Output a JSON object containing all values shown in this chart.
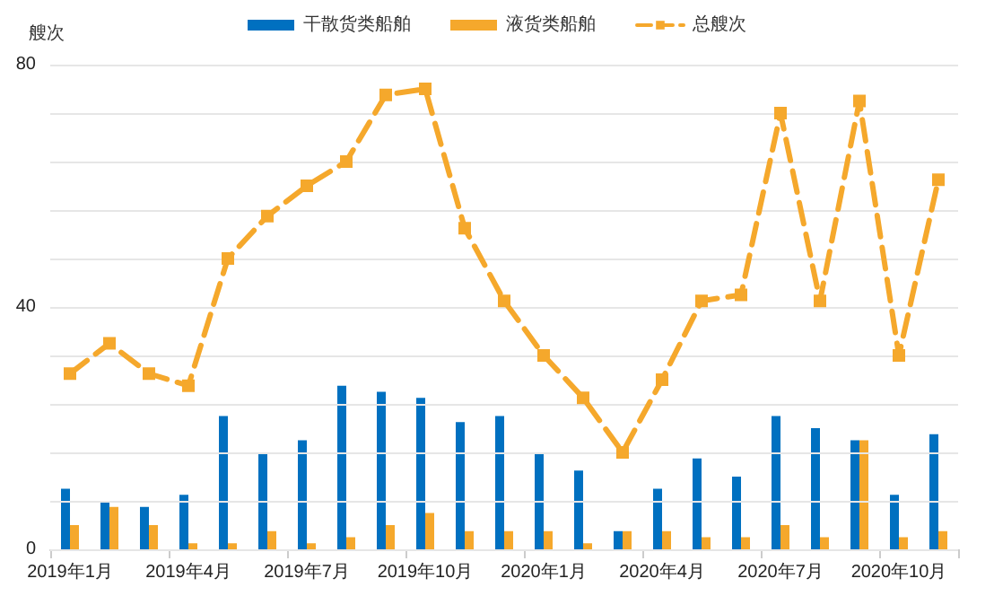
{
  "chart_data": {
    "type": "bar",
    "ylabel": "艘次",
    "categories": [
      "2019年1月",
      null,
      null,
      "2019年4月",
      null,
      null,
      "2019年7月",
      null,
      null,
      "2019年10月",
      null,
      null,
      "2020年1月",
      null,
      null,
      "2020年4月",
      null,
      null,
      "2020年7月",
      null,
      null,
      "2020年10月",
      null
    ],
    "series": [
      {
        "name": "干散货类船舶",
        "color": "#0070c0",
        "values": [
          10,
          8,
          7,
          9,
          22,
          16,
          18,
          27,
          26,
          25,
          21,
          22,
          16,
          13,
          3,
          10,
          15,
          12,
          22,
          20,
          18,
          9,
          19
        ]
      },
      {
        "name": "液货类船舶",
        "color": "#f5a82c",
        "values": [
          4,
          7,
          4,
          1,
          1,
          3,
          1,
          2,
          4,
          6,
          3,
          3,
          3,
          1,
          3,
          3,
          2,
          2,
          4,
          2,
          18,
          2,
          3
        ]
      },
      {
        "name": "总艘次",
        "type": "line",
        "color": "#f5a82c",
        "marker": "square",
        "line_style": "dashed",
        "values": [
          29,
          34,
          29,
          27,
          48,
          55,
          60,
          64,
          75,
          76,
          53,
          41,
          32,
          25,
          16,
          28,
          41,
          42,
          72,
          41,
          74,
          32,
          61
        ]
      }
    ],
    "ylim": [
      0,
      80
    ],
    "yticks": [
      0,
      {
        "value": 8,
        "label": null
      },
      {
        "value": 16,
        "label": null
      },
      {
        "value": 24,
        "label": null
      },
      {
        "value": 32,
        "label": null
      },
      40,
      {
        "value": 48,
        "label": null
      },
      {
        "value": 56,
        "label": null
      },
      {
        "value": 64,
        "label": null
      },
      {
        "value": 72,
        "label": null
      },
      80
    ],
    "grid": "y",
    "legend": "top"
  }
}
